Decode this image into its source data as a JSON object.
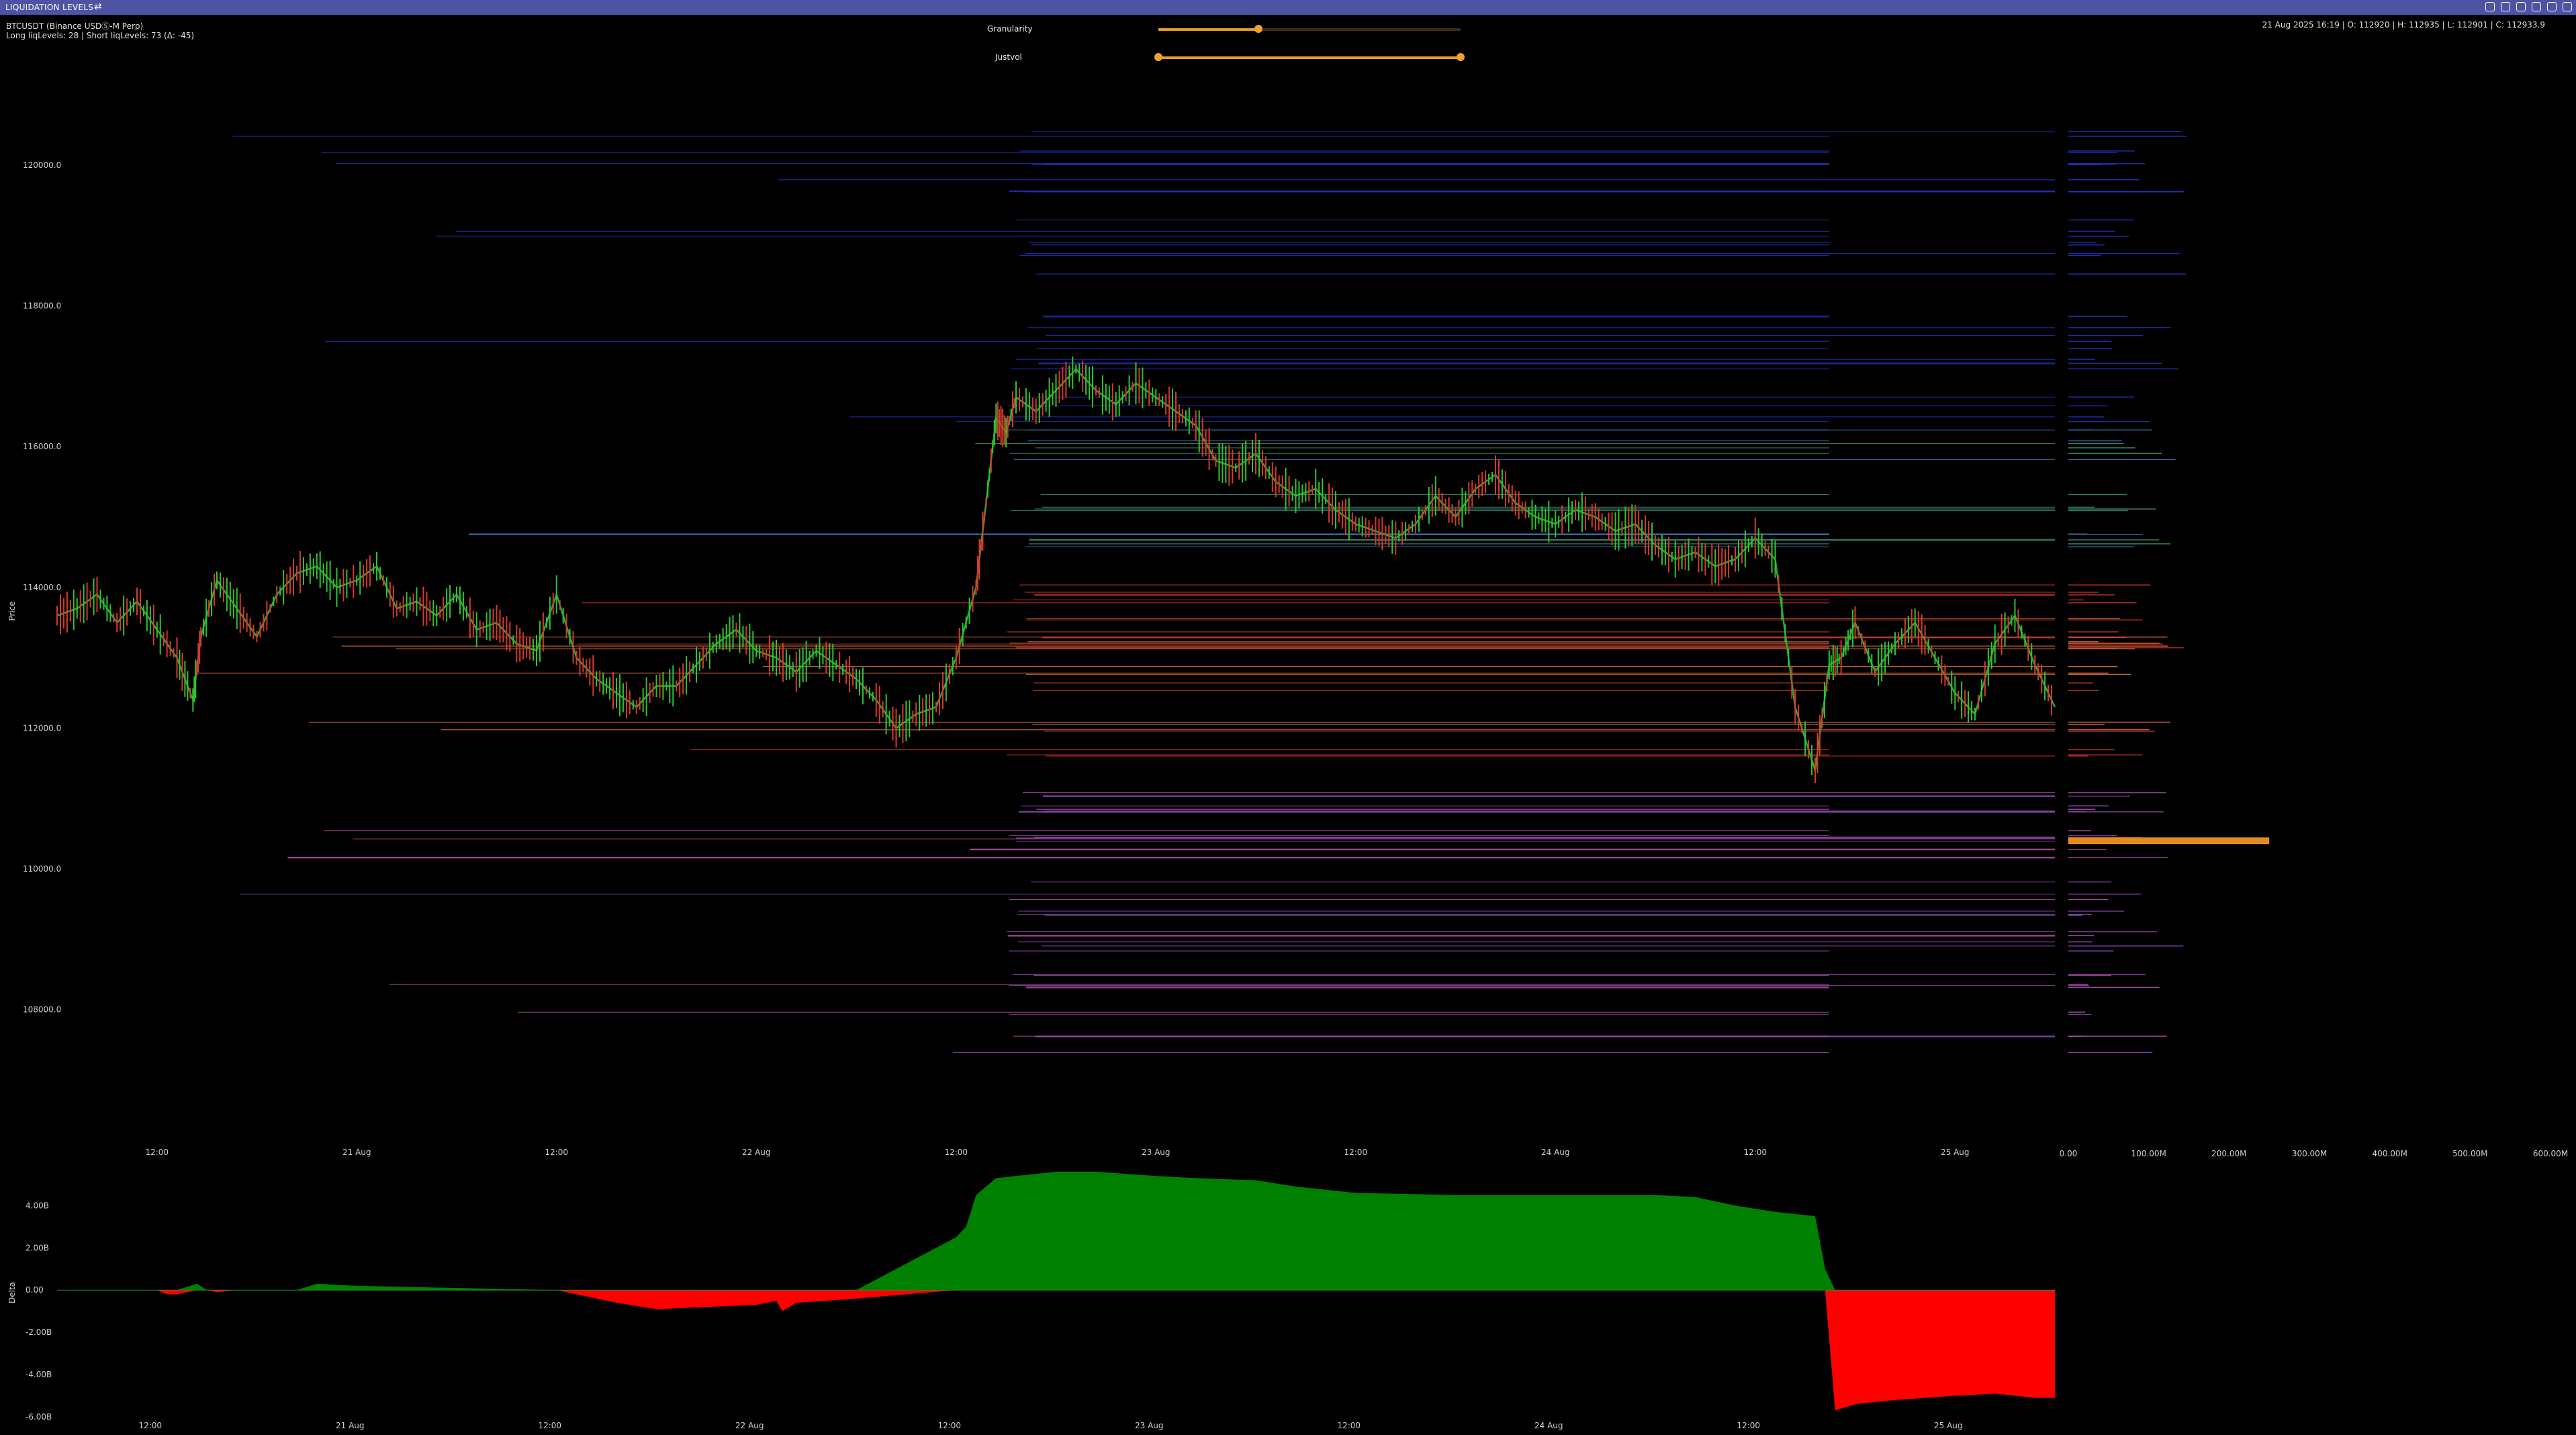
{
  "window": {
    "title": "LIQUIDATION LEVELS",
    "swap_icon": "swap-icon"
  },
  "header": {
    "symbol_line": "BTCUSDT (Binance USDⓈ-M Perp)",
    "levels_line": "Long liqLevels: 28 | Short liqLevels: 73 (Δ: -45)",
    "ohlc_line": "21 Aug 2025 16:19 | O: 112920 | H: 112935 | L: 112901 | C: 112933.9"
  },
  "controls": {
    "granularity": {
      "label": "Granularity",
      "value": 0.33
    },
    "justvol": {
      "label": "Justvol",
      "range": [
        0.0,
        1.0
      ]
    }
  },
  "chart_data": [
    {
      "type": "line",
      "panel": "price",
      "ylabel": "Price",
      "ylim": [
        106700,
        121200
      ],
      "y_ticks": [
        120000,
        118000,
        116000,
        114000,
        112000,
        110000,
        108000
      ],
      "y_tick_labels": [
        "120000.0",
        "118000.0",
        "116000.0",
        "114000.0",
        "112000.0",
        "110000.0",
        "108000.0"
      ],
      "xlim": [
        0,
        100
      ],
      "x_ticks": [
        5,
        15,
        25,
        35,
        45,
        55,
        65,
        75,
        85,
        95
      ],
      "x_tick_labels": [
        "12:00",
        "21 Aug",
        "12:00",
        "22 Aug",
        "12:00",
        "23 Aug",
        "12:00",
        "24 Aug",
        "12:00",
        "25 Aug"
      ],
      "series": [
        {
          "x": [
            0,
            1,
            2,
            3,
            4,
            5,
            6,
            6.8,
            7.2,
            8,
            9,
            10,
            11,
            12,
            13,
            14,
            15,
            16,
            17,
            18,
            19,
            20,
            21,
            22,
            23,
            24,
            25,
            26,
            27,
            28,
            29,
            30,
            31,
            32,
            33,
            34,
            35,
            36,
            37,
            38,
            39,
            40,
            41,
            42,
            43,
            44,
            45,
            46,
            46.5,
            47,
            47.5,
            48,
            49,
            50,
            51,
            52,
            53,
            54,
            55,
            56,
            57,
            58,
            59,
            60,
            61,
            62,
            63,
            64,
            65,
            66,
            67,
            68,
            69,
            70,
            71,
            72,
            73,
            74,
            75,
            76,
            77,
            78,
            79,
            80,
            81,
            82,
            83,
            84,
            85,
            86,
            87,
            88,
            88.7,
            89.3,
            90,
            91,
            92,
            93,
            94,
            95,
            96,
            97,
            98,
            99,
            100
          ],
          "y": [
            113600,
            113700,
            113900,
            113500,
            113800,
            113400,
            113000,
            112400,
            113300,
            114100,
            113700,
            113300,
            113900,
            114200,
            114300,
            114000,
            114100,
            114300,
            113700,
            113800,
            113600,
            113900,
            113400,
            113500,
            113200,
            113100,
            113900,
            113000,
            112700,
            112500,
            112300,
            112600,
            112600,
            112900,
            113200,
            113400,
            113100,
            113000,
            112800,
            113100,
            112900,
            112700,
            112400,
            112000,
            112200,
            112300,
            113000,
            114000,
            115200,
            116400,
            116200,
            116700,
            116500,
            116800,
            117100,
            116800,
            116600,
            116900,
            116700,
            116500,
            116300,
            115800,
            115700,
            115900,
            115500,
            115300,
            115400,
            115100,
            114900,
            114800,
            114700,
            114900,
            115300,
            115000,
            115400,
            115600,
            115200,
            115000,
            114900,
            115100,
            115000,
            114800,
            114900,
            114600,
            114400,
            114500,
            114300,
            114400,
            114700,
            114400,
            112300,
            111400,
            112900,
            113000,
            113500,
            112800,
            113200,
            113500,
            113000,
            112500,
            112200,
            113200,
            113600,
            112900,
            112300
          ]
        }
      ]
    },
    {
      "type": "bar",
      "panel": "liquidation_volume_profile",
      "xlim": [
        0,
        600
      ],
      "x_ticks": [
        0,
        100,
        200,
        300,
        400,
        500,
        600
      ],
      "x_tick_labels": [
        "0.00",
        "100.00M",
        "200.00M",
        "300.00M",
        "400.00M",
        "500.00M",
        "600.00M"
      ],
      "highlight_level": {
        "price": 110400,
        "value": 250
      }
    },
    {
      "type": "area",
      "panel": "delta",
      "ylabel": "Delta",
      "ylim": [
        -6.0,
        5.6
      ],
      "y_ticks": [
        4.0,
        2.0,
        0.0,
        -2.0,
        -4.0,
        -6.0
      ],
      "y_tick_labels": [
        "4.00B",
        "2.00B",
        "0.00",
        "-2.00B",
        "-4.00B",
        "-6.00B"
      ],
      "x_tick_labels": [
        "12:00",
        "21 Aug",
        "12:00",
        "22 Aug",
        "12:00",
        "23 Aug",
        "12:00",
        "24 Aug",
        "12:00",
        "25 Aug"
      ],
      "series": [
        {
          "x": [
            0,
            5,
            5.5,
            6,
            7,
            7.5,
            8,
            9,
            12,
            13,
            15,
            20,
            25,
            27,
            28,
            30,
            35,
            36,
            36.3,
            37,
            40,
            45,
            45.5,
            46,
            47,
            48,
            50,
            52,
            55,
            57,
            60,
            62,
            65,
            70,
            75,
            80,
            82,
            84,
            86,
            88,
            88.5,
            89,
            90,
            92,
            95,
            97,
            99,
            100
          ],
          "y": [
            0.0,
            0.0,
            -0.2,
            -0.2,
            0.3,
            0.0,
            -0.1,
            0.0,
            0.0,
            0.3,
            0.2,
            0.1,
            0.0,
            -0.4,
            -0.6,
            -0.9,
            -0.7,
            -0.5,
            -1.0,
            -0.6,
            -0.4,
            2.5,
            3.0,
            4.5,
            5.3,
            5.4,
            5.6,
            5.6,
            5.4,
            5.3,
            5.2,
            4.9,
            4.6,
            4.5,
            4.5,
            4.5,
            4.4,
            4.0,
            3.7,
            3.5,
            1.0,
            -5.7,
            -5.4,
            -5.2,
            -5.0,
            -4.9,
            -5.1,
            -5.1
          ]
        }
      ]
    }
  ]
}
